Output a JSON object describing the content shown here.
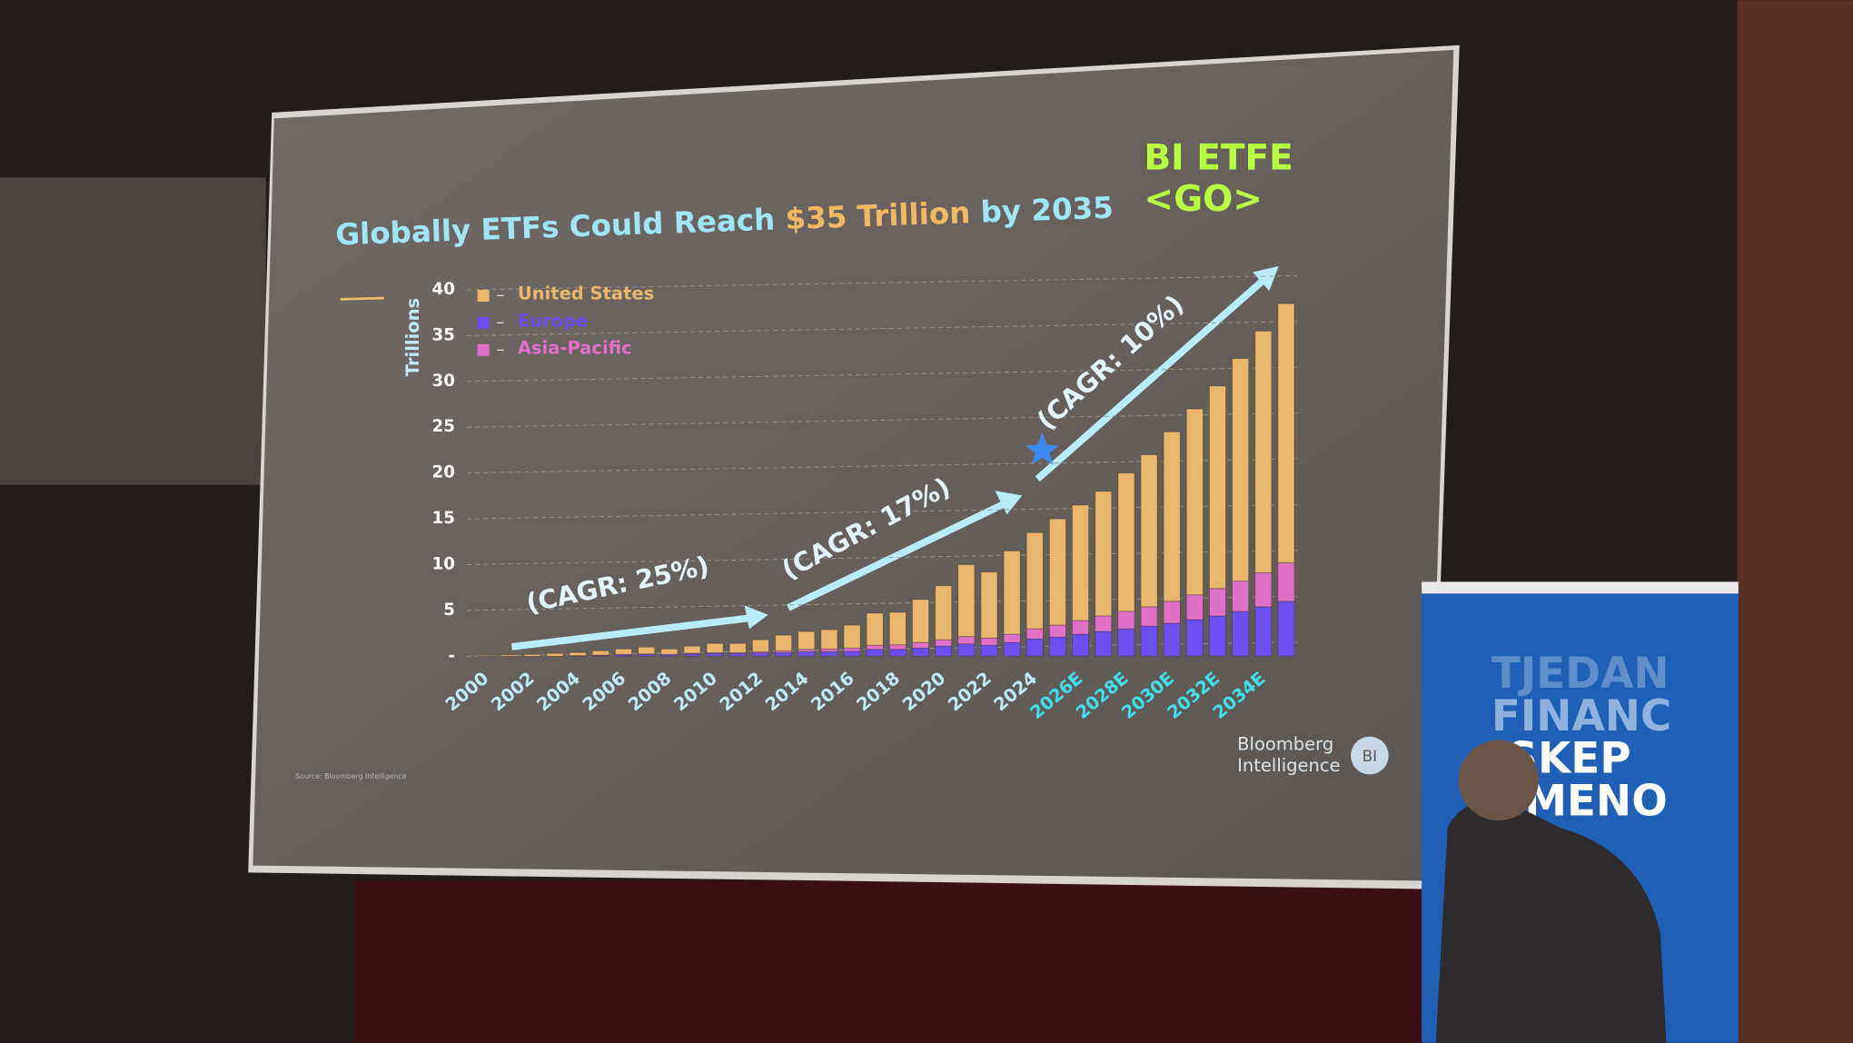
{
  "chart_data": {
    "type": "stacked_bar",
    "title_parts": [
      "Globally ETFs Could Reach",
      "$35 Trillion",
      "by 2035"
    ],
    "y_label": "Trillions",
    "categories": [
      "2000",
      null,
      "2002",
      null,
      "2004",
      null,
      "2006",
      null,
      "2008",
      null,
      "2010",
      null,
      "2012",
      null,
      "2014",
      null,
      "2016",
      null,
      "2018",
      null,
      "2020",
      null,
      "2022",
      null,
      "2024",
      null,
      "2026E",
      null,
      "2028E",
      null,
      "2030E",
      null,
      "2032E",
      null,
      "2034E",
      null
    ],
    "series": [
      {
        "name": "United States",
        "color": "#e8b66c",
        "values": [
          0.1,
          0.15,
          0.2,
          0.3,
          0.33,
          0.47,
          0.6,
          0.75,
          0.6,
          0.77,
          1.0,
          1.0,
          1.3,
          1.7,
          1.95,
          2.1,
          2.5,
          3.5,
          3.55,
          4.7,
          5.9,
          7.85,
          7.2,
          9.1,
          10.5,
          11.6,
          12.6,
          13.6,
          15.1,
          16.6,
          18.5,
          20.3,
          22.1,
          24.3,
          26.4,
          28.3
        ]
      },
      {
        "name": "Europe",
        "color": "#6a4ef0",
        "values": [
          0,
          0,
          0,
          0,
          0.05,
          0.1,
          0.15,
          0.2,
          0.15,
          0.25,
          0.3,
          0.3,
          0.35,
          0.4,
          0.5,
          0.5,
          0.55,
          0.75,
          0.75,
          0.9,
          1.1,
          1.35,
          1.2,
          1.5,
          1.9,
          2.1,
          2.4,
          2.7,
          3.0,
          3.3,
          3.6,
          4.0,
          4.4,
          4.9,
          5.4,
          6.0
        ]
      },
      {
        "name": "Asia-Pacific",
        "color": "#e070c8",
        "values": [
          0,
          0,
          0,
          0,
          0.02,
          0.03,
          0.05,
          0.05,
          0.05,
          0.08,
          0.1,
          0.1,
          0.15,
          0.2,
          0.25,
          0.3,
          0.35,
          0.45,
          0.5,
          0.6,
          0.7,
          0.8,
          0.8,
          0.9,
          1.1,
          1.3,
          1.5,
          1.7,
          1.9,
          2.1,
          2.4,
          2.7,
          3.0,
          3.3,
          3.7,
          4.2
        ]
      }
    ],
    "ylim": [
      0,
      40
    ],
    "yticks": [
      {
        "value": 0,
        "label": "-"
      },
      5,
      10,
      15,
      20,
      25,
      30,
      35,
      40
    ],
    "grid": true,
    "legend": "upper left",
    "annotations": [
      "(CAGR: 25%)",
      "(CAGR: 17%)",
      "(CAGR: 10%)"
    ],
    "function_code": [
      "BI ETFE",
      "<GO>"
    ],
    "logo": [
      "Bloomberg",
      "Intelligence",
      "BI"
    ],
    "source": "Source: Bloomberg Intelligence"
  },
  "banner": [
    "TJEDAN",
    "FINANC",
    "ISKEP",
    "MENO"
  ]
}
